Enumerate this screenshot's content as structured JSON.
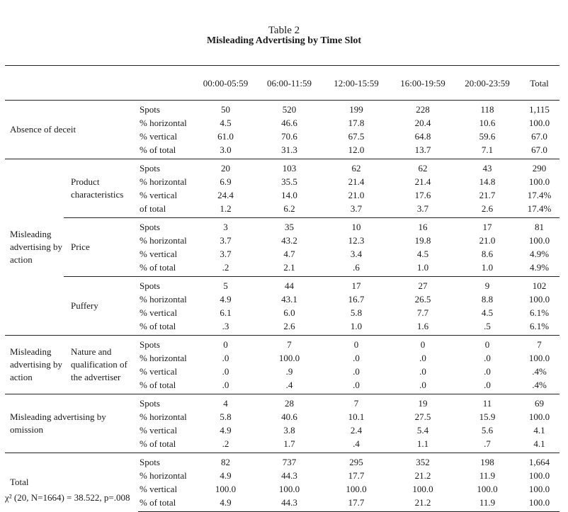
{
  "title": "Table 2",
  "subtitle": "Misleading Advertising by Time Slot",
  "columns": [
    "00:00-05:59",
    "06:00-11:59",
    "12:00-15:59",
    "16:00-19:59",
    "20:00-23:59",
    "Total"
  ],
  "groups": [
    {
      "label": "Absence of deceit",
      "subgroups": [
        {
          "label": "",
          "rows": [
            {
              "measure": "Spots",
              "values": [
                "50",
                "520",
                "199",
                "228",
                "118",
                "1,115"
              ]
            },
            {
              "measure": "% horizontal",
              "values": [
                "4.5",
                "46.6",
                "17.8",
                "20.4",
                "10.6",
                "100.0"
              ]
            },
            {
              "measure": "% vertical",
              "values": [
                "61.0",
                "70.6",
                "67.5",
                "64.8",
                "59.6",
                "67.0"
              ]
            },
            {
              "measure": "% of total",
              "values": [
                "3.0",
                "31.3",
                "12.0",
                "13.7",
                "7.1",
                "67.0"
              ]
            }
          ]
        }
      ]
    },
    {
      "label": "Misleading advertising by action",
      "subgroups": [
        {
          "label": "Product characteristics",
          "rows": [
            {
              "measure": "Spots",
              "values": [
                "20",
                "103",
                "62",
                "62",
                "43",
                "290"
              ]
            },
            {
              "measure": "% horizontal",
              "values": [
                "6.9",
                "35.5",
                "21.4",
                "21.4",
                "14.8",
                "100.0"
              ]
            },
            {
              "measure": "% vertical",
              "values": [
                "24.4",
                "14.0",
                "21.0",
                "17.6",
                "21.7",
                "17.4%"
              ]
            },
            {
              "measure": "of total",
              "values": [
                "1.2",
                "6.2",
                "3.7",
                "3.7",
                "2.6",
                "17.4%"
              ]
            }
          ]
        },
        {
          "label": "Price",
          "rows": [
            {
              "measure": "Spots",
              "values": [
                "3",
                "35",
                "10",
                "16",
                "17",
                "81"
              ]
            },
            {
              "measure": "% horizontal",
              "values": [
                "3.7",
                "43.2",
                "12.3",
                "19.8",
                "21.0",
                "100.0"
              ]
            },
            {
              "measure": "% vertical",
              "values": [
                "3.7",
                "4.7",
                "3.4",
                "4.5",
                "8.6",
                "4.9%"
              ]
            },
            {
              "measure": "% of total",
              "values": [
                ".2",
                "2.1",
                ".6",
                "1.0",
                "1.0",
                "4.9%"
              ]
            }
          ]
        },
        {
          "label": "Puffery",
          "rows": [
            {
              "measure": "Spots",
              "values": [
                "5",
                "44",
                "17",
                "27",
                "9",
                "102"
              ]
            },
            {
              "measure": "% horizontal",
              "values": [
                "4.9",
                "43.1",
                "16.7",
                "26.5",
                "8.8",
                "100.0"
              ]
            },
            {
              "measure": "% vertical",
              "values": [
                "6.1",
                "6.0",
                "5.8",
                "7.7",
                "4.5",
                "6.1%"
              ]
            },
            {
              "measure": "% of total",
              "values": [
                ".3",
                "2.6",
                "1.0",
                "1.6",
                ".5",
                "6.1%"
              ]
            }
          ]
        }
      ]
    },
    {
      "label": "Misleading advertising by action",
      "subgroups": [
        {
          "label": "Nature and qualification of the advertiser",
          "rows": [
            {
              "measure": "Spots",
              "values": [
                "0",
                "7",
                "0",
                "0",
                "0",
                "7"
              ]
            },
            {
              "measure": "% horizontal",
              "values": [
                ".0",
                "100.0",
                ".0",
                ".0",
                ".0",
                "100.0"
              ]
            },
            {
              "measure": "% vertical",
              "values": [
                ".0",
                ".9",
                ".0",
                ".0",
                ".0",
                ".4%"
              ]
            },
            {
              "measure": "% of total",
              "values": [
                ".0",
                ".4",
                ".0",
                ".0",
                ".0",
                ".4%"
              ]
            }
          ]
        }
      ]
    },
    {
      "label": "Misleading advertising by omission",
      "subgroups": [
        {
          "label": "",
          "rows": [
            {
              "measure": "Spots",
              "values": [
                "4",
                "28",
                "7",
                "19",
                "11",
                "69"
              ]
            },
            {
              "measure": "% horizontal",
              "values": [
                "5.8",
                "40.6",
                "10.1",
                "27.5",
                "15.9",
                "100.0"
              ]
            },
            {
              "measure": "% vertical",
              "values": [
                "4.9",
                "3.8",
                "2.4",
                "5.4",
                "5.6",
                "4.1"
              ]
            },
            {
              "measure": "% of total",
              "values": [
                ".2",
                "1.7",
                ".4",
                "1.1",
                ".7",
                "4.1"
              ]
            }
          ]
        }
      ]
    },
    {
      "label": "Total",
      "subgroups": [
        {
          "label": "",
          "rows": [
            {
              "measure": "Spots",
              "values": [
                "82",
                "737",
                "295",
                "352",
                "198",
                "1,664"
              ]
            },
            {
              "measure": "% horizontal",
              "values": [
                "4.9",
                "44.3",
                "17.7",
                "21.2",
                "11.9",
                "100.0"
              ]
            },
            {
              "measure": "% vertical",
              "values": [
                "100.0",
                "100.0",
                "100.0",
                "100.0",
                "100.0",
                "100.0"
              ]
            },
            {
              "measure": "% of total",
              "values": [
                "4.9",
                "44.3",
                "17.7",
                "21.2",
                "11.9",
                "100.0"
              ]
            }
          ]
        }
      ]
    }
  ],
  "footnote": "χ² (20, N=1664) = 38.522, p=.008"
}
